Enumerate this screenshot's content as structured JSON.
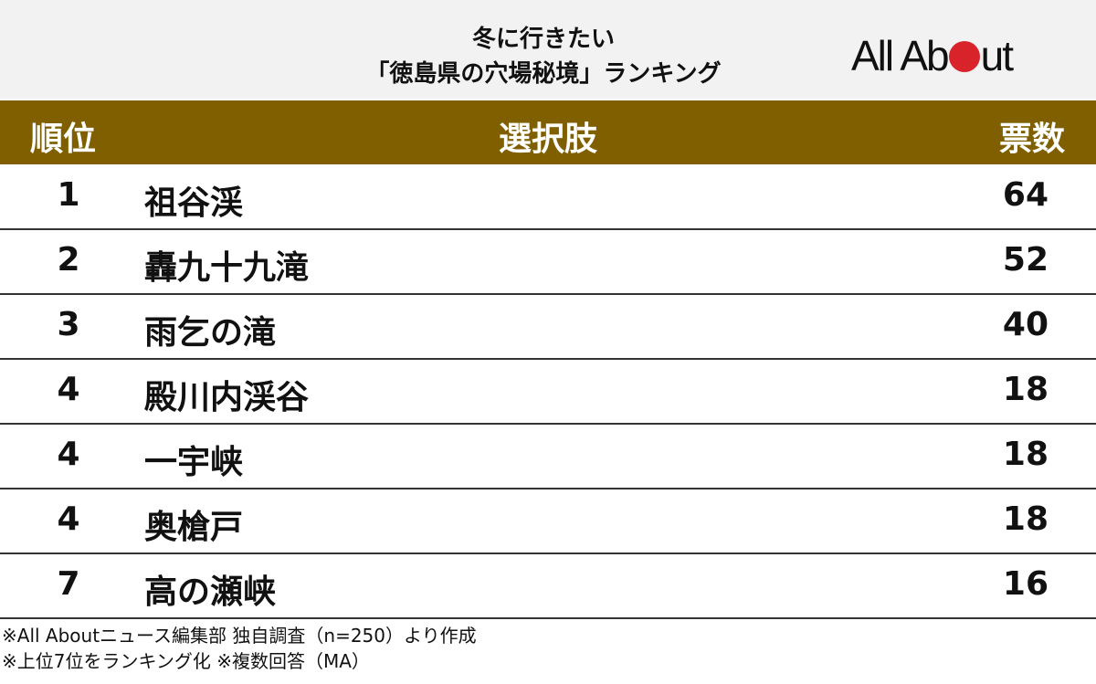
{
  "header": {
    "title_line1": "冬に行きたい",
    "title_line2": "「徳島県の穴場秘境」ランキング",
    "logo": "All About"
  },
  "chart_data": {
    "type": "table",
    "columns": [
      "順位",
      "選択肢",
      "票数"
    ],
    "rows": [
      {
        "rank": "1",
        "name": "祖谷渓",
        "votes": "64"
      },
      {
        "rank": "2",
        "name": "轟九十九滝",
        "votes": "52"
      },
      {
        "rank": "3",
        "name": "雨乞の滝",
        "votes": "40"
      },
      {
        "rank": "4",
        "name": "殿川内渓谷",
        "votes": "18"
      },
      {
        "rank": "4",
        "name": "一宇峡",
        "votes": "18"
      },
      {
        "rank": "4",
        "name": "奥槍戸",
        "votes": "18"
      },
      {
        "rank": "7",
        "name": "高の瀬峡",
        "votes": "16"
      }
    ]
  },
  "footer": {
    "note1": "※All Aboutニュース編集部 独自調査（n=250）より作成",
    "note2": "※上位7位をランキング化 ※複数回答（MA）"
  },
  "colors": {
    "header_bg": "#7f5f00",
    "top_bg": "#f2f2f2",
    "logo_dot": "#d8232a"
  }
}
